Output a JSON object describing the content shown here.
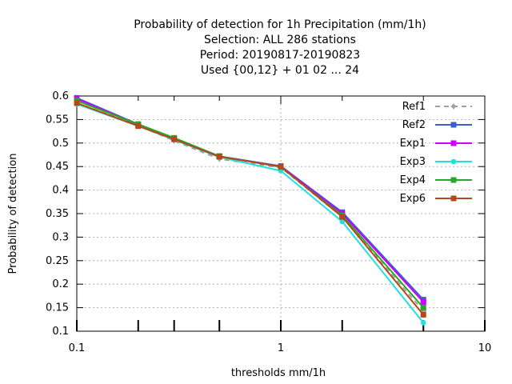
{
  "chart_data": {
    "type": "line",
    "title_lines": [
      "Probability of detection  for 1h Precipitation (mm/1h)",
      "Selection: ALL    286 stations",
      "Period: 20190817-20190823",
      "Used {00,12} + 01 02 ... 24"
    ],
    "xlabel": "thresholds mm/1h",
    "ylabel": "Probability of detection",
    "x_scale": "log",
    "xlim": [
      0.1,
      10
    ],
    "ylim": [
      0.1,
      0.6
    ],
    "x_ticks": [
      {
        "value": 0.1,
        "label": "0.1"
      },
      {
        "value": 1,
        "label": "1"
      },
      {
        "value": 10,
        "label": "10"
      }
    ],
    "x_minor_ticks": [
      0.2,
      0.3,
      0.5,
      2,
      5
    ],
    "y_ticks": [
      {
        "value": 0.1,
        "label": "0.1"
      },
      {
        "value": 0.15,
        "label": "0.15"
      },
      {
        "value": 0.2,
        "label": "0.2"
      },
      {
        "value": 0.25,
        "label": "0.25"
      },
      {
        "value": 0.3,
        "label": "0.3"
      },
      {
        "value": 0.35,
        "label": "0.35"
      },
      {
        "value": 0.4,
        "label": "0.4"
      },
      {
        "value": 0.45,
        "label": "0.45"
      },
      {
        "value": 0.5,
        "label": "0.5"
      },
      {
        "value": 0.55,
        "label": "0.55"
      },
      {
        "value": 0.6,
        "label": "0.6"
      }
    ],
    "grid": true,
    "legend_position": "top-right",
    "x": [
      0.1,
      0.2,
      0.3,
      0.5,
      1,
      2,
      5
    ],
    "series": [
      {
        "name": "Ref1",
        "color": "#a0a0a0",
        "dashed": true,
        "marker": "plus",
        "values": [
          0.585,
          0.537,
          0.505,
          0.466,
          0.448,
          0.343,
          0.143
        ]
      },
      {
        "name": "Ref2",
        "color": "#3a5fcd",
        "dashed": false,
        "marker": "square",
        "values": [
          0.596,
          0.54,
          0.51,
          0.472,
          0.451,
          0.353,
          0.167
        ]
      },
      {
        "name": "Exp1",
        "color": "#cc00ff",
        "dashed": false,
        "marker": "square",
        "values": [
          0.594,
          0.539,
          0.51,
          0.472,
          0.45,
          0.35,
          0.162
        ]
      },
      {
        "name": "Exp3",
        "color": "#22e0e0",
        "dashed": false,
        "marker": "circle",
        "values": [
          0.583,
          0.536,
          0.507,
          0.47,
          0.441,
          0.333,
          0.118
        ]
      },
      {
        "name": "Exp4",
        "color": "#22aa22",
        "dashed": false,
        "marker": "square",
        "values": [
          0.59,
          0.54,
          0.511,
          0.472,
          0.449,
          0.346,
          0.15
        ]
      },
      {
        "name": "Exp6",
        "color": "#b5471b",
        "dashed": false,
        "marker": "square",
        "values": [
          0.585,
          0.536,
          0.508,
          0.471,
          0.45,
          0.343,
          0.135
        ]
      }
    ]
  }
}
